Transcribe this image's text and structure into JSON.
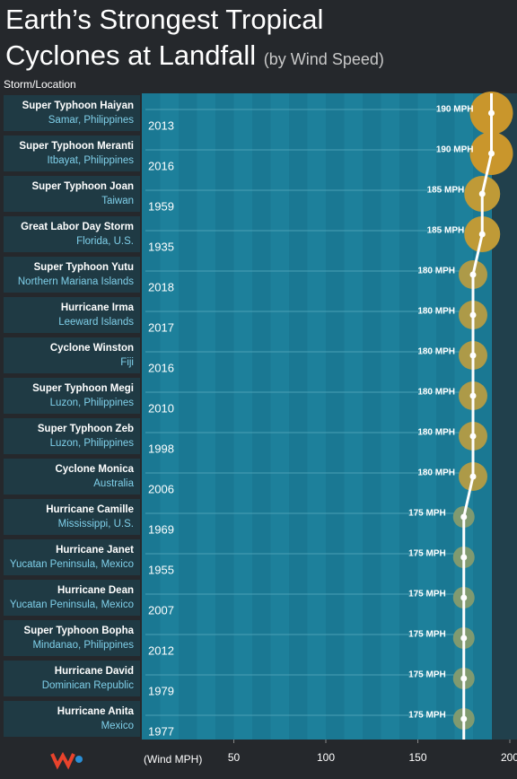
{
  "chart_data": {
    "type": "dot",
    "title": "Earth’s Strongest Tropical Cyclones at Landfall",
    "subtitle": "(by Wind Speed)",
    "y_label": "Storm/Location",
    "x_label": "(Wind MPH)",
    "categories": [
      "Super Typhoon Haiyan",
      "Super Typhoon Meranti",
      "Super Typhoon Joan",
      "Great Labor Day Storm",
      "Super Typhoon Yutu",
      "Hurricane Irma",
      "Cyclone Winston",
      "Super Typhoon Megi",
      "Super Typhoon Zeb",
      "Cyclone Monica",
      "Hurricane Camille",
      "Hurricane Janet",
      "Hurricane Dean",
      "Super Typhoon Bopha",
      "Hurricane David",
      "Hurricane Anita"
    ],
    "locations": [
      "Samar, Philippines",
      "Itbayat, Philippines",
      "Taiwan",
      "Florida, U.S.",
      "Northern Mariana Islands",
      "Leeward Islands",
      "Fiji",
      "Luzon, Philippines",
      "Luzon, Philippines",
      "Australia",
      "Mississippi, U.S.",
      "Yucatan Peninsula, Mexico",
      "Yucatan Peninsula, Mexico",
      "Mindanao, Philippines",
      "Dominican Republic",
      "Mexico"
    ],
    "years": [
      "2013",
      "2016",
      "1959",
      "1935",
      "2018",
      "2017",
      "2016",
      "2010",
      "1998",
      "2006",
      "1969",
      "1955",
      "2007",
      "2012",
      "1979",
      "1977"
    ],
    "values": [
      190,
      190,
      185,
      185,
      180,
      180,
      180,
      180,
      180,
      180,
      175,
      175,
      175,
      175,
      175,
      175
    ],
    "value_labels": [
      "190 MPH",
      "190 MPH",
      "185 MPH",
      "185 MPH",
      "180 MPH",
      "180 MPH",
      "180 MPH",
      "180 MPH",
      "180 MPH",
      "180 MPH",
      "175 MPH",
      "175 MPH",
      "175 MPH",
      "175 MPH",
      "175 MPH",
      "175 MPH"
    ],
    "colors": [
      "#c9962c",
      "#c9962c",
      "#bf9a37",
      "#bf9a37",
      "#ad9a48",
      "#ad9a48",
      "#ad9a48",
      "#ad9a48",
      "#ad9a48",
      "#ad9a48",
      "#809a70",
      "#809a70",
      "#809a70",
      "#809a70",
      "#809a70",
      "#809a70"
    ],
    "line_color": "#ffffff",
    "xlim": [
      0,
      200
    ],
    "xticks": [
      50,
      100,
      150,
      200
    ]
  }
}
